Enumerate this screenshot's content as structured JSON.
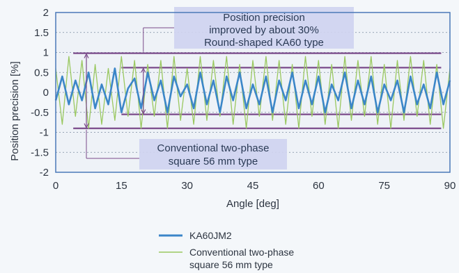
{
  "chart_data": {
    "type": "line",
    "title": "",
    "xlabel": "Angle [deg]",
    "ylabel": "Position precision [%]",
    "xlim": [
      0,
      90
    ],
    "ylim": [
      -2,
      2
    ],
    "x_ticks": [
      "0",
      "15",
      "30",
      "45",
      "60",
      "75",
      "90"
    ],
    "y_ticks": [
      "2",
      "1.5",
      "1",
      "0.5",
      "0",
      "-0.5",
      "-1",
      "-1.5",
      "-2"
    ],
    "grid": "horizontal dotted",
    "legend_position": "below",
    "colors": {
      "ka60": "#3b86c8",
      "conventional": "#9ac860",
      "bands": "#7a4a8a",
      "annotation_box": "#cfd4f0",
      "plot_border": "#4a78b8"
    },
    "series": [
      {
        "name": "KA60JM2",
        "x": [
          0,
          1.5,
          3,
          4.5,
          6,
          7.5,
          9,
          10.5,
          12,
          13.5,
          15,
          16.5,
          18,
          19.5,
          21,
          22.5,
          24,
          25.5,
          27,
          28.5,
          30,
          31.5,
          33,
          34.5,
          36,
          37.5,
          39,
          40.5,
          42,
          43.5,
          45,
          46.5,
          48,
          49.5,
          51,
          52.5,
          54,
          55.5,
          57,
          58.5,
          60,
          61.5,
          63,
          64.5,
          66,
          67.5,
          69,
          70.5,
          72,
          73.5,
          75,
          76.5,
          78,
          79.5,
          81,
          82.5,
          84,
          85.5,
          87,
          88.5,
          90
        ],
        "values": [
          -0.2,
          0.4,
          -0.3,
          0.3,
          -0.2,
          0.5,
          -0.4,
          0.2,
          -0.3,
          0.6,
          -0.5,
          0.1,
          0.35,
          -0.4,
          0.5,
          -0.2,
          0.3,
          -0.5,
          0.4,
          -0.1,
          0.2,
          -0.4,
          0.5,
          -0.3,
          0.3,
          -0.5,
          0.4,
          -0.2,
          0.5,
          -0.4,
          0.2,
          -0.3,
          0.4,
          -0.5,
          0.3,
          -0.2,
          0.5,
          -0.4,
          0.3,
          -0.3,
          0.4,
          -0.5,
          0.2,
          -0.2,
          0.5,
          -0.4,
          0.3,
          -0.3,
          0.4,
          -0.5,
          0.2,
          -0.2,
          0.3,
          -0.5,
          0.4,
          -0.3,
          0.2,
          -0.4,
          0.5,
          -0.3,
          0.3
        ]
      },
      {
        "name": "Conventional two-phase square 56 mm type",
        "x": [
          0,
          1.5,
          3,
          4.5,
          6,
          7.5,
          9,
          10.5,
          12,
          13.5,
          15,
          16.5,
          18,
          19.5,
          21,
          22.5,
          24,
          25.5,
          27,
          28.5,
          30,
          31.5,
          33,
          34.5,
          36,
          37.5,
          39,
          40.5,
          42,
          43.5,
          45,
          46.5,
          48,
          49.5,
          51,
          52.5,
          54,
          55.5,
          57,
          58.5,
          60,
          61.5,
          63,
          64.5,
          66,
          67.5,
          69,
          70.5,
          72,
          73.5,
          75,
          76.5,
          78,
          79.5,
          81,
          82.5,
          84,
          85.5,
          87,
          88.5,
          90
        ],
        "values": [
          0.6,
          -0.8,
          0.9,
          -0.6,
          0.8,
          -0.9,
          0.7,
          -0.8,
          0.6,
          -0.7,
          0.9,
          -0.6,
          0.8,
          -0.9,
          0.7,
          -0.6,
          0.8,
          -0.9,
          0.9,
          -0.7,
          0.6,
          -0.8,
          0.9,
          -0.7,
          0.8,
          -0.6,
          0.9,
          -0.8,
          0.7,
          -0.9,
          0.8,
          -0.6,
          0.9,
          -0.7,
          0.8,
          -0.8,
          0.7,
          -0.9,
          0.9,
          -0.6,
          0.8,
          -0.8,
          0.7,
          -0.9,
          0.9,
          -0.7,
          0.8,
          -0.6,
          0.9,
          -0.8,
          0.7,
          -0.9,
          0.8,
          -0.7,
          0.9,
          -0.6,
          0.8,
          -0.8,
          0.7,
          -0.9,
          0.6
        ]
      }
    ],
    "reference_lines": [
      {
        "name": "conventional-max",
        "y": 0.98,
        "x": [
          4,
          88
        ]
      },
      {
        "name": "ka60-max",
        "y": 0.62,
        "x": [
          15,
          88
        ]
      },
      {
        "name": "ka60-min",
        "y": -0.55,
        "x": [
          15,
          88
        ]
      },
      {
        "name": "conventional-min",
        "y": -0.9,
        "x": [
          4,
          88
        ]
      }
    ],
    "annotations": {
      "top": [
        "Position precision",
        "improved by about 30%",
        "Round-shaped KA60 type"
      ],
      "bottom": [
        "Conventional two-phase",
        "square 56 mm type"
      ]
    },
    "legend": [
      {
        "label_lines": [
          "KA60JM2"
        ],
        "series": "KA60JM2"
      },
      {
        "label_lines": [
          "Conventional two-phase",
          "square 56 mm type"
        ],
        "series": "Conventional two-phase square 56 mm type"
      }
    ]
  }
}
